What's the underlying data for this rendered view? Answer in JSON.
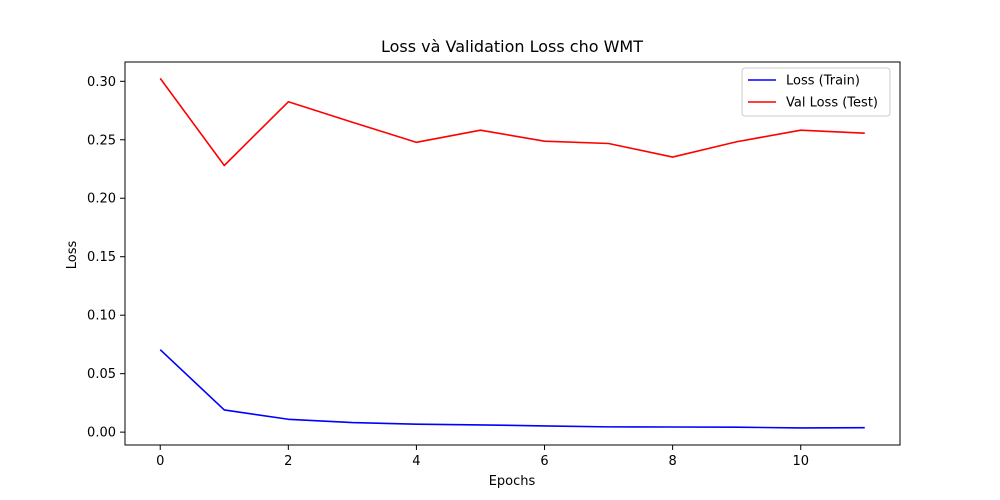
{
  "chart_data": {
    "type": "line",
    "title": "Loss và Validation Loss cho WMT",
    "xlabel": "Epochs",
    "ylabel": "Loss",
    "xlim": [
      -0.55,
      11.55
    ],
    "ylim": [
      -0.011,
      0.3165
    ],
    "xticks": [
      0,
      2,
      4,
      6,
      8,
      10
    ],
    "xtick_labels": [
      "0",
      "2",
      "4",
      "6",
      "8",
      "10"
    ],
    "yticks": [
      0.0,
      0.05,
      0.1,
      0.15,
      0.2,
      0.25,
      0.3
    ],
    "ytick_labels": [
      "0.00",
      "0.05",
      "0.10",
      "0.15",
      "0.20",
      "0.25",
      "0.30"
    ],
    "grid": false,
    "legend_position": "top-right",
    "x": [
      0,
      1,
      2,
      3,
      4,
      5,
      6,
      7,
      8,
      9,
      10,
      11
    ],
    "series": [
      {
        "name": "Loss (Train)",
        "color": "#0000ff",
        "values": [
          0.0705,
          0.019,
          0.011,
          0.0082,
          0.0068,
          0.0062,
          0.0053,
          0.0045,
          0.0044,
          0.0042,
          0.0036,
          0.0038
        ]
      },
      {
        "name": "Val Loss (Test)",
        "color": "#ff0000",
        "values": [
          0.3025,
          0.228,
          0.2825,
          0.265,
          0.2478,
          0.2582,
          0.2488,
          0.2468,
          0.2352,
          0.2483,
          0.2582,
          0.2556
        ]
      }
    ]
  }
}
